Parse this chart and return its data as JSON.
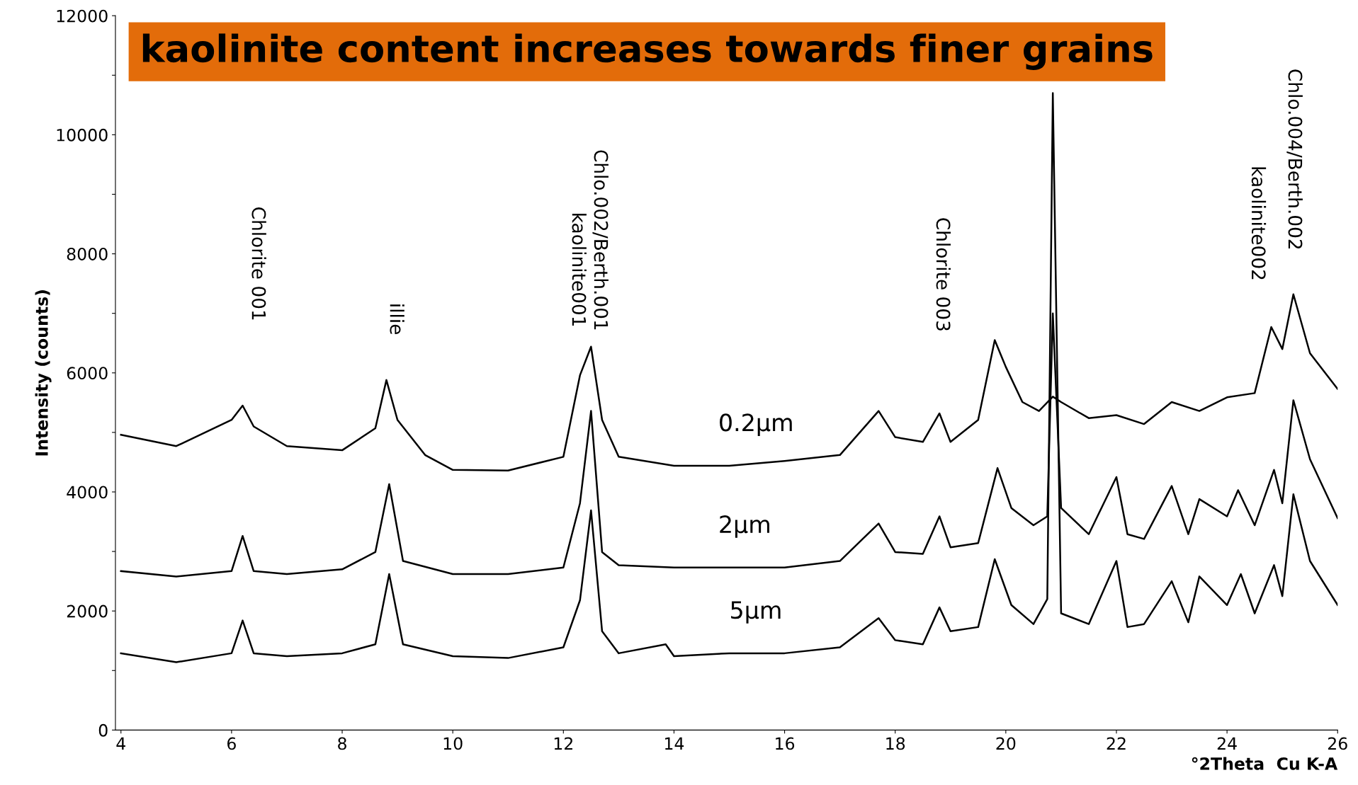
{
  "chart_data": {
    "type": "line",
    "title": "kaolinite content increases towards finer grains",
    "xlabel": "°2Theta  Cu K-A",
    "ylabel": "Intensity (counts)",
    "xlim": [
      3.9,
      26
    ],
    "ylim": [
      0,
      12000
    ],
    "xticks": [
      4,
      6,
      8,
      10,
      12,
      14,
      16,
      18,
      20,
      22,
      24,
      26
    ],
    "yticks": [
      0,
      {
        "value": 1000,
        "label": null
      },
      2000,
      {
        "value": 3000,
        "label": null
      },
      4000,
      {
        "value": 5000,
        "label": null
      },
      6000,
      {
        "value": 7000,
        "label": null
      },
      8000,
      {
        "value": 9000,
        "label": null
      },
      10000,
      {
        "value": 11000,
        "label": null
      },
      12000
    ],
    "grid": false,
    "legend": false,
    "marker": "none",
    "line_style": "solid",
    "series": [
      {
        "name": "0.2µm",
        "color": "#000000",
        "x": [
          4,
          5,
          6,
          6.2,
          6.4,
          7,
          8,
          8.6,
          8.8,
          9.0,
          9.5,
          10,
          11,
          12,
          12.3,
          12.5,
          12.7,
          13,
          14,
          15,
          16,
          17,
          17.7,
          18,
          18.5,
          18.8,
          19,
          19.5,
          19.8,
          20,
          20.3,
          20.6,
          20.85,
          21.0,
          21.5,
          22,
          22.5,
          23,
          23.5,
          24,
          24.5,
          24.8,
          25,
          25.2,
          25.5,
          26
        ],
        "values": [
          4960,
          4770,
          5210,
          5450,
          5100,
          4770,
          4700,
          5070,
          5880,
          5210,
          4620,
          4370,
          4360,
          4590,
          5960,
          6440,
          5210,
          4590,
          4440,
          4440,
          4520,
          4620,
          5360,
          4920,
          4840,
          5320,
          4840,
          5210,
          6550,
          6100,
          5510,
          5360,
          5600,
          5510,
          5240,
          5290,
          5140,
          5510,
          5360,
          5590,
          5660,
          6770,
          6400,
          7320,
          6330,
          5730
        ]
      },
      {
        "name": "2µm",
        "color": "#000000",
        "x": [
          4,
          5,
          6,
          6.2,
          6.4,
          7,
          8,
          8.6,
          8.85,
          9.1,
          10,
          11,
          12,
          12.3,
          12.5,
          12.7,
          13,
          14,
          15,
          16,
          17,
          17.7,
          18,
          18.5,
          18.8,
          19,
          19.5,
          19.85,
          20.1,
          20.5,
          20.75,
          20.85,
          21.0,
          21.5,
          22,
          22.2,
          22.5,
          23,
          23.3,
          23.5,
          24,
          24.2,
          24.5,
          24.85,
          25,
          25.2,
          25.5,
          26
        ],
        "values": [
          2670,
          2580,
          2670,
          3260,
          2670,
          2620,
          2700,
          2990,
          4130,
          2840,
          2620,
          2620,
          2730,
          3810,
          5360,
          2990,
          2770,
          2730,
          2730,
          2730,
          2840,
          3470,
          2990,
          2960,
          3590,
          3070,
          3140,
          4400,
          3730,
          3440,
          3590,
          7000,
          3730,
          3290,
          4250,
          3290,
          3210,
          4100,
          3290,
          3880,
          3590,
          4030,
          3440,
          4370,
          3810,
          5540,
          4550,
          3560
        ]
      },
      {
        "name": "5µm",
        "color": "#000000",
        "x": [
          4,
          5,
          6,
          6.2,
          6.4,
          7,
          8,
          8.6,
          8.85,
          9.1,
          10,
          11,
          12,
          12.3,
          12.5,
          12.7,
          13,
          13.85,
          14,
          15,
          16,
          17,
          17.7,
          18,
          18.5,
          18.8,
          19,
          19.5,
          19.8,
          20.1,
          20.5,
          20.75,
          20.85,
          21.0,
          21.5,
          22,
          22.2,
          22.5,
          23,
          23.3,
          23.5,
          24,
          24.25,
          24.5,
          24.85,
          25,
          25.2,
          25.5,
          26
        ],
        "values": [
          1290,
          1140,
          1290,
          1840,
          1290,
          1240,
          1290,
          1440,
          2620,
          1440,
          1240,
          1210,
          1390,
          2180,
          3690,
          1660,
          1290,
          1440,
          1240,
          1290,
          1290,
          1390,
          1880,
          1510,
          1440,
          2060,
          1660,
          1730,
          2870,
          2100,
          1780,
          2200,
          10700,
          1960,
          1780,
          2840,
          1730,
          1780,
          2500,
          1810,
          2580,
          2100,
          2620,
          1960,
          2770,
          2250,
          3960,
          2840,
          2100
        ]
      }
    ],
    "annotations": [
      "Chlorite 001",
      "illie",
      "kaolinite001",
      "Chlo.002/Berth.001",
      "Chlorite 003",
      "kaolinite002",
      "Chlo.004/Berth.002"
    ]
  }
}
